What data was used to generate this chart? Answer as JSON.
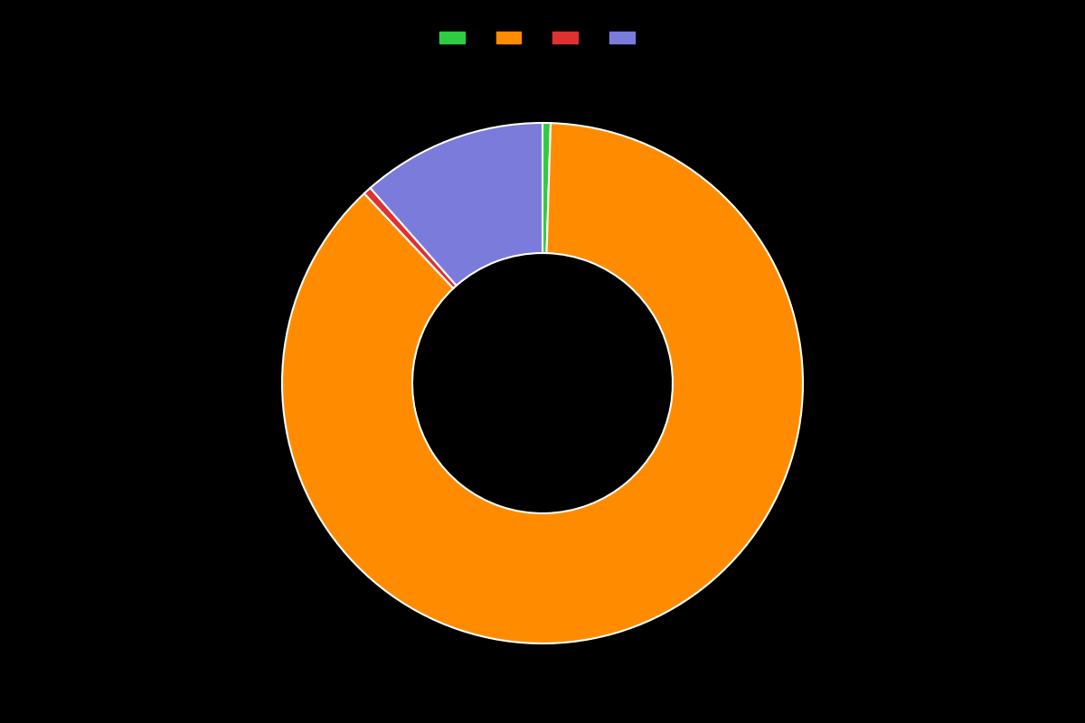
{
  "values": [
    0.5,
    87.5,
    0.5,
    11.5
  ],
  "colors": [
    "#2ecc40",
    "#ff8c00",
    "#e03030",
    "#7b7bdb"
  ],
  "legend_labels": [
    "",
    "",
    "",
    ""
  ],
  "background_color": "#000000",
  "wedge_linewidth": 1.5,
  "wedge_linecolor": "#ffffff",
  "donut_hole_ratio": 0.5,
  "startangle": 90,
  "figsize": [
    12.0,
    8.0
  ],
  "dpi": 100
}
